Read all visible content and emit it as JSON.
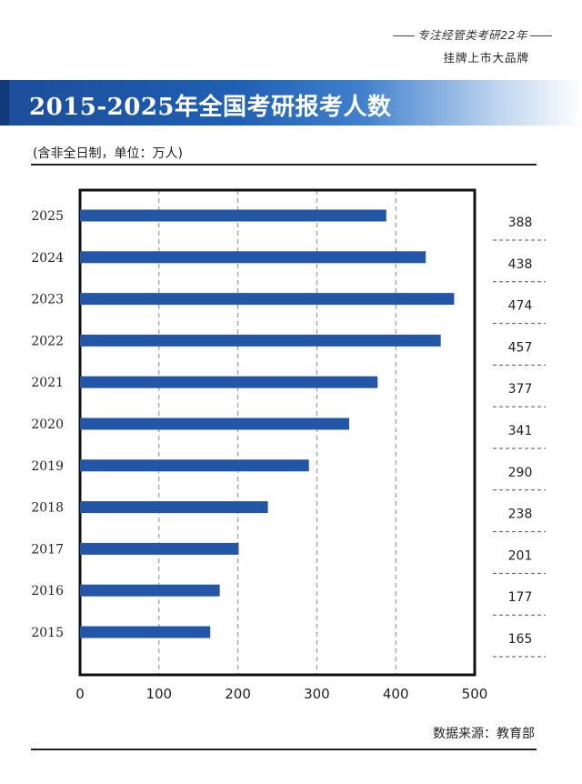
{
  "header": {
    "tagline_1": "专注经管类考研22年",
    "tagline_2": "挂牌上市大品牌"
  },
  "title": "2015-2025年全国考研报考人数",
  "unit_note": "(含非全日制，单位：万人)",
  "source": "数据来源：教育部",
  "colors": {
    "bar": "#2456a8",
    "banner": "#1f5fb3"
  },
  "chart_data": {
    "type": "bar",
    "orientation": "horizontal",
    "categories": [
      "2025",
      "2024",
      "2023",
      "2022",
      "2021",
      "2020",
      "2019",
      "2018",
      "2017",
      "2016",
      "2015"
    ],
    "values": [
      388,
      438,
      474,
      457,
      377,
      341,
      290,
      238,
      201,
      177,
      165
    ],
    "x_ticks": [
      0,
      100,
      200,
      300,
      400,
      500
    ],
    "xlim": [
      0,
      500
    ],
    "grid": "vertical-dashed",
    "value_labels_position": "right-column"
  }
}
